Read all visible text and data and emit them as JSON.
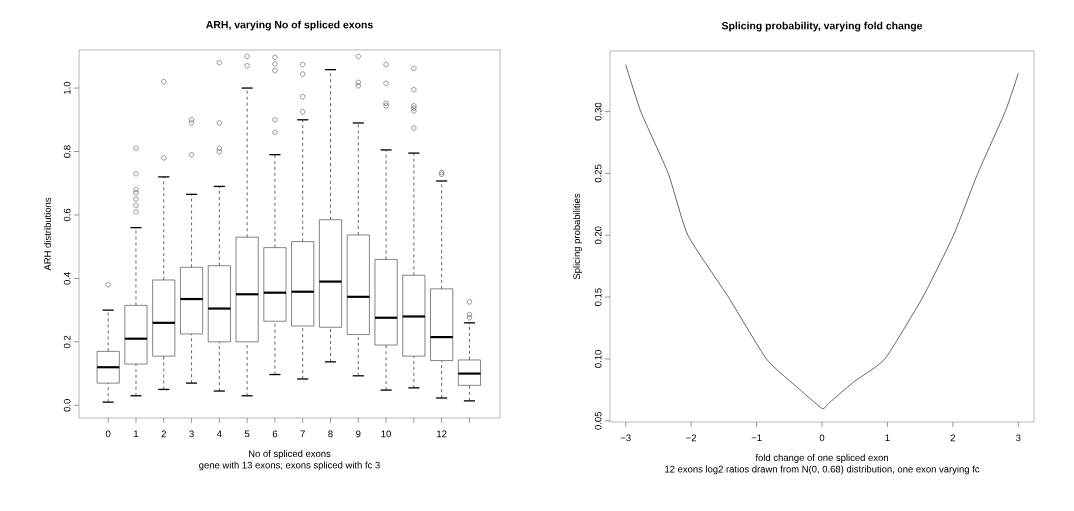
{
  "chart_data": [
    {
      "type": "box",
      "title": "ARH, varying No of spliced exons",
      "xlabel": "No of spliced exons",
      "ylabel": "ARH distributions",
      "annotations": [
        "gene with 13 exons; exons spliced with fc 3"
      ],
      "categories": [
        "0",
        "1",
        "2",
        "3",
        "4",
        "5",
        "6",
        "7",
        "8",
        "9",
        "10",
        null,
        "12",
        null
      ],
      "boxes": [
        {
          "low": 0.01,
          "q1": 0.07,
          "median": 0.12,
          "q3": 0.17,
          "high": 0.3,
          "outliers": [
            0.38
          ]
        },
        {
          "low": 0.03,
          "q1": 0.13,
          "median": 0.21,
          "q3": 0.315,
          "high": 0.56,
          "outliers": [
            0.61,
            0.63,
            0.65,
            0.67,
            0.68,
            0.73,
            0.81
          ]
        },
        {
          "low": 0.05,
          "q1": 0.155,
          "median": 0.26,
          "q3": 0.395,
          "high": 0.72,
          "outliers": [
            0.78,
            1.02
          ]
        },
        {
          "low": 0.07,
          "q1": 0.225,
          "median": 0.335,
          "q3": 0.435,
          "high": 0.665,
          "outliers": [
            0.79,
            0.89,
            0.9
          ]
        },
        {
          "low": 0.045,
          "q1": 0.2,
          "median": 0.305,
          "q3": 0.44,
          "high": 0.69,
          "outliers": [
            0.8,
            0.81,
            0.89,
            1.08
          ]
        },
        {
          "low": 0.03,
          "q1": 0.2,
          "median": 0.35,
          "q3": 0.53,
          "high": 1.0,
          "outliers": [
            1.07,
            1.1
          ]
        },
        {
          "low": 0.097,
          "q1": 0.265,
          "median": 0.355,
          "q3": 0.497,
          "high": 0.79,
          "outliers": [
            0.86,
            0.9,
            1.055,
            1.076,
            1.097
          ]
        },
        {
          "low": 0.083,
          "q1": 0.25,
          "median": 0.358,
          "q3": 0.516,
          "high": 0.9,
          "outliers": [
            0.925,
            0.973,
            1.044,
            1.074
          ]
        },
        {
          "low": 0.137,
          "q1": 0.246,
          "median": 0.39,
          "q3": 0.585,
          "high": 1.058
        },
        {
          "low": 0.093,
          "q1": 0.223,
          "median": 0.342,
          "q3": 0.537,
          "high": 0.89,
          "outliers": [
            1.007,
            1.018,
            1.1
          ]
        },
        {
          "low": 0.048,
          "q1": 0.19,
          "median": 0.276,
          "q3": 0.46,
          "high": 0.805,
          "outliers": [
            0.944,
            0.952,
            1.015,
            1.074
          ]
        },
        {
          "low": 0.055,
          "q1": 0.155,
          "median": 0.28,
          "q3": 0.41,
          "high": 0.795,
          "outliers": [
            0.874,
            0.928,
            0.937,
            0.944,
            0.995,
            1.062
          ]
        },
        {
          "low": 0.023,
          "q1": 0.141,
          "median": 0.215,
          "q3": 0.367,
          "high": 0.707,
          "outliers": [
            0.728,
            0.734
          ]
        },
        {
          "low": 0.014,
          "q1": 0.063,
          "median": 0.1,
          "q3": 0.143,
          "high": 0.26,
          "outliers": [
            0.276,
            0.286,
            0.326
          ]
        }
      ],
      "ylim": [
        -0.04,
        1.12
      ],
      "yticks": [
        {
          "value": 0,
          "label": "0.0"
        },
        {
          "value": 0.2,
          "label": "0.2"
        },
        {
          "value": 0.4,
          "label": "0.4"
        },
        {
          "value": 0.6,
          "label": "0.6"
        },
        {
          "value": 0.8,
          "label": "0.8"
        },
        {
          "value": 1.0,
          "label": "1.0"
        }
      ]
    },
    {
      "type": "line",
      "title": "Splicing probability, varying fold change",
      "xlabel": "fold change of one spliced exon",
      "ylabel": "Splicing probabilities",
      "annotations": [
        "12 exons log2 ratios drawn from N(0, 0.68) distribution, one exon varying fc"
      ],
      "x": [
        -3,
        -2.77,
        -2.35,
        -2.05,
        -1.43,
        -0.85,
        -0.4,
        0,
        0.1,
        0.5,
        0.96,
        1.54,
        2.01,
        2.38,
        2.8,
        3
      ],
      "values": [
        0.338,
        0.3,
        0.25,
        0.2,
        0.15,
        0.1,
        0.078,
        0.06,
        0.064,
        0.082,
        0.1,
        0.15,
        0.2,
        0.25,
        0.3,
        0.331
      ],
      "color": "#000000",
      "line_style": "solid",
      "marker": "none",
      "xlim": [
        -3.24,
        3.24
      ],
      "ylim": [
        0.049,
        0.349
      ],
      "xticks": [
        {
          "value": -3,
          "label": "−3"
        },
        {
          "value": -2,
          "label": "−2"
        },
        {
          "value": -1,
          "label": "−1"
        },
        0,
        1,
        2,
        3
      ],
      "yticks": [
        {
          "value": 0.05,
          "label": "0.05"
        },
        {
          "value": 0.1,
          "label": "0.10"
        },
        {
          "value": 0.15,
          "label": "0.15"
        },
        {
          "value": 0.2,
          "label": "0.20"
        },
        {
          "value": 0.25,
          "label": "0.25"
        },
        {
          "value": 0.3,
          "label": "0.30"
        }
      ]
    }
  ]
}
